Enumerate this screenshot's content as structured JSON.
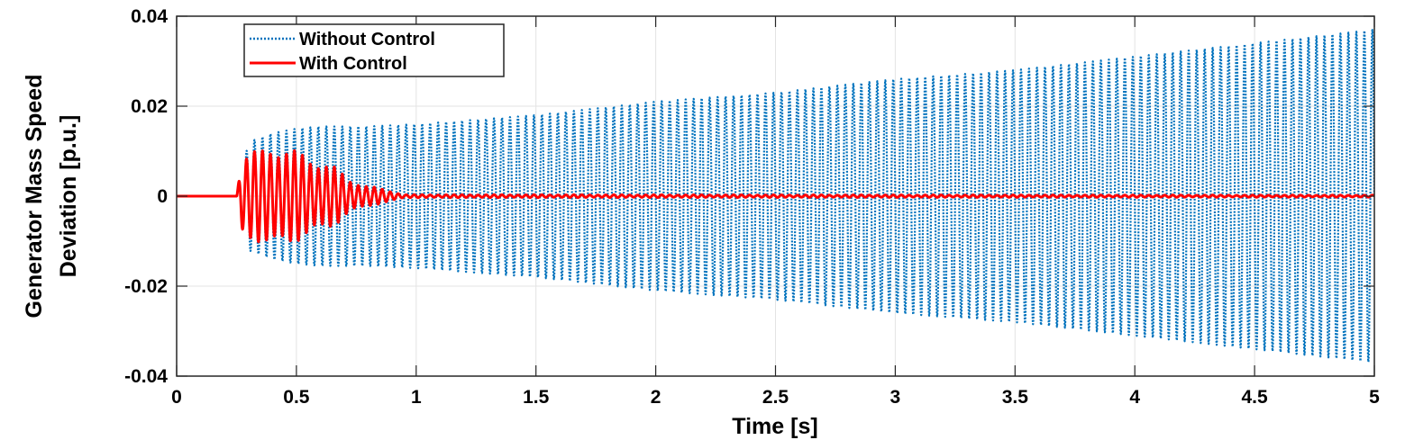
{
  "chart_data": {
    "type": "line",
    "xlabel": "Time [s]",
    "ylabel_lines": [
      "Generator Mass Speed",
      "Deviation [p.u.]"
    ],
    "xlim": [
      0,
      5
    ],
    "ylim": [
      -0.04,
      0.04
    ],
    "xticks": [
      0,
      0.5,
      1,
      1.5,
      2,
      2.5,
      3,
      3.5,
      4,
      4.5,
      5
    ],
    "xtick_labels": [
      "0",
      "0.5",
      "1",
      "1.5",
      "2",
      "2.5",
      "3",
      "3.5",
      "4",
      "4.5",
      "5"
    ],
    "yticks": [
      -0.04,
      -0.02,
      0,
      0.02,
      0.04
    ],
    "ytick_labels": [
      "-0.04",
      "-0.02",
      "0",
      "0.02",
      "0.04"
    ],
    "grid": true,
    "legend_position": "top-left",
    "series": [
      {
        "name": "Without Control",
        "color": "#0072BD",
        "style": "dotted",
        "oscillation_frequency_hz": 30,
        "disturbance_start": 0.25,
        "envelope": {
          "t": [
            0.25,
            0.3,
            0.4,
            0.5,
            0.6,
            0.8,
            1.0,
            1.5,
            2.0,
            2.5,
            3.0,
            3.5,
            4.0,
            4.5,
            5.0
          ],
          "amp": [
            0.0,
            0.012,
            0.014,
            0.015,
            0.0155,
            0.0155,
            0.016,
            0.018,
            0.021,
            0.023,
            0.026,
            0.028,
            0.031,
            0.034,
            0.037
          ]
        }
      },
      {
        "name": "With Control",
        "color": "#FF0000",
        "style": "solid",
        "oscillation_frequency_hz": 30,
        "disturbance_start": 0.25,
        "envelope": {
          "t": [
            0.25,
            0.27,
            0.35,
            0.4,
            0.45,
            0.55,
            0.65,
            0.72,
            0.8,
            0.85,
            0.9,
            0.95,
            5.0
          ],
          "amp": [
            0.0,
            0.008,
            0.009,
            0.0105,
            0.0095,
            0.008,
            0.006,
            0.0035,
            0.002,
            0.0015,
            0.001,
            0.0003,
            0.0002
          ]
        }
      }
    ]
  }
}
